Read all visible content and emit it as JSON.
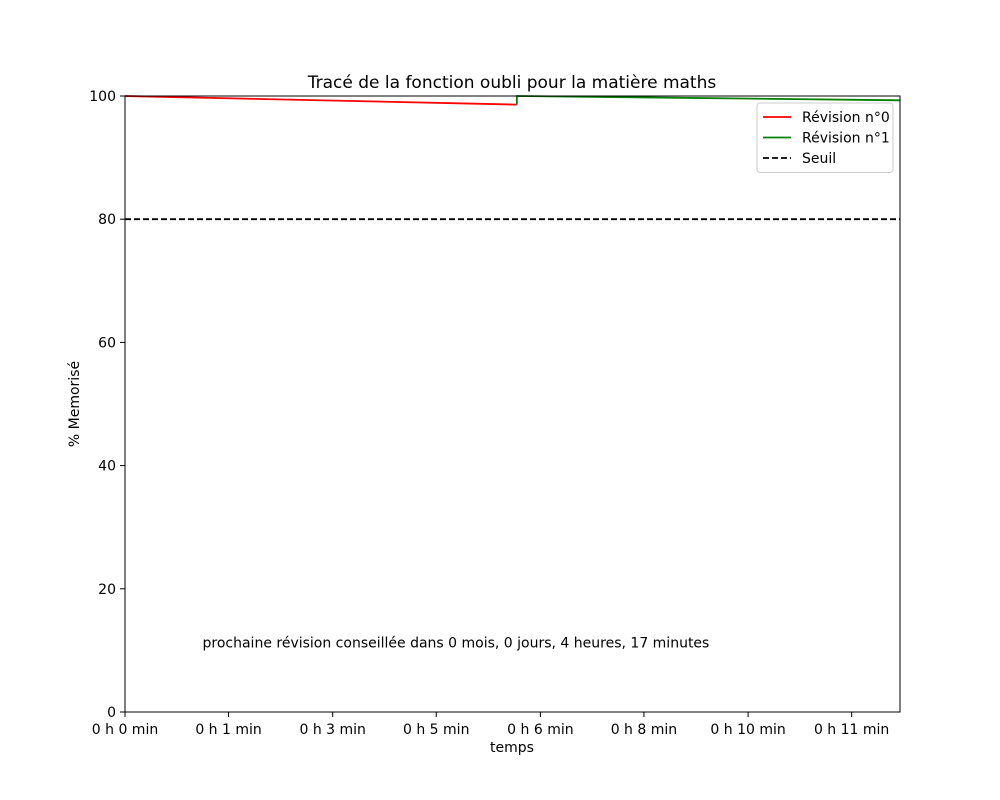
{
  "chart_data": {
    "type": "line",
    "title": "Tracé de la fonction oubli pour la matière maths",
    "xlabel": "temps",
    "ylabel": "% Memorisé",
    "xlim": [
      0,
      12.5
    ],
    "ylim": [
      0,
      100
    ],
    "x_unit": "min",
    "x_ticks": [
      {
        "value": 0,
        "label": "0 h 0 min"
      },
      {
        "value": 1.67,
        "label": "0 h 1 min"
      },
      {
        "value": 3.35,
        "label": "0 h 3 min"
      },
      {
        "value": 5.02,
        "label": "0 h 5 min"
      },
      {
        "value": 6.7,
        "label": "0 h 6 min"
      },
      {
        "value": 8.37,
        "label": "0 h 8 min"
      },
      {
        "value": 10.05,
        "label": "0 h 10 min"
      },
      {
        "value": 11.72,
        "label": "0 h 11 min"
      }
    ],
    "y_ticks": [
      0,
      20,
      40,
      60,
      80,
      100
    ],
    "grid": false,
    "legend_position": "top-right",
    "series": [
      {
        "name": "Révision n°0",
        "color": "#ff0000",
        "style": "solid",
        "points": [
          [
            0,
            100
          ],
          [
            6.32,
            98.6
          ]
        ]
      },
      {
        "name": "Révision n°1",
        "color": "#008000",
        "style": "solid",
        "points": [
          [
            6.32,
            98.6
          ],
          [
            6.32,
            100
          ],
          [
            12.5,
            99.3
          ]
        ]
      },
      {
        "name": "Seuil",
        "color": "#000000",
        "style": "dashed",
        "points": [
          [
            0,
            80
          ],
          [
            12.5,
            80
          ]
        ]
      }
    ],
    "annotations": [
      {
        "text": "prochaine révision conseillée dans 0 mois, 0 jours, 4 heures, 17 minutes",
        "x": 1.25,
        "y": 10.5
      }
    ]
  }
}
